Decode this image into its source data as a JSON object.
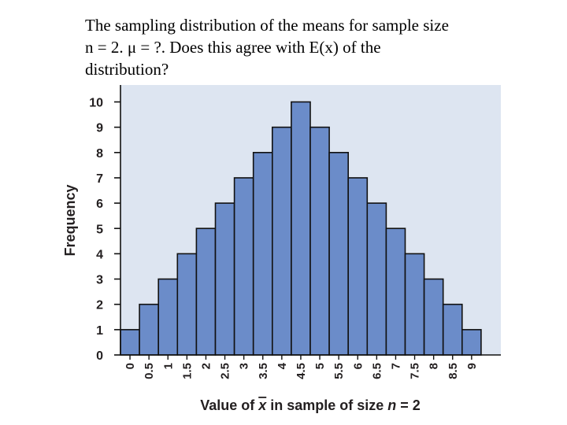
{
  "slide": {
    "text_lines": [
      "The sampling distribution of the means for sample size",
      "n = 2.  μ = ?.   Does this agree with E(x) of the",
      "distribution?"
    ]
  },
  "chart_data": {
    "type": "bar",
    "categories": [
      "0",
      "0.5",
      "1",
      "1.5",
      "2",
      "2.5",
      "3",
      "3.5",
      "4",
      "4.5",
      "5",
      "5.5",
      "6",
      "6.5",
      "7",
      "7.5",
      "8",
      "8.5",
      "9"
    ],
    "values": [
      1,
      2,
      3,
      4,
      5,
      6,
      7,
      8,
      9,
      10,
      9,
      8,
      7,
      6,
      5,
      4,
      3,
      2,
      1
    ],
    "ylabel": "Frequency",
    "xlabel_parts": [
      "Value of ",
      "x",
      " in sample of size ",
      "n",
      " = 2"
    ],
    "ylim": [
      0,
      10
    ],
    "yticks": [
      "0",
      "1",
      "2",
      "3",
      "4",
      "5",
      "6",
      "7",
      "8",
      "9",
      "10"
    ],
    "grid": false,
    "colors": {
      "bar_fill": "#6b8cc9",
      "bar_stroke": "#111111",
      "plot_background": "#dde5f1",
      "axis": "#111111",
      "text": "#231f20"
    }
  }
}
